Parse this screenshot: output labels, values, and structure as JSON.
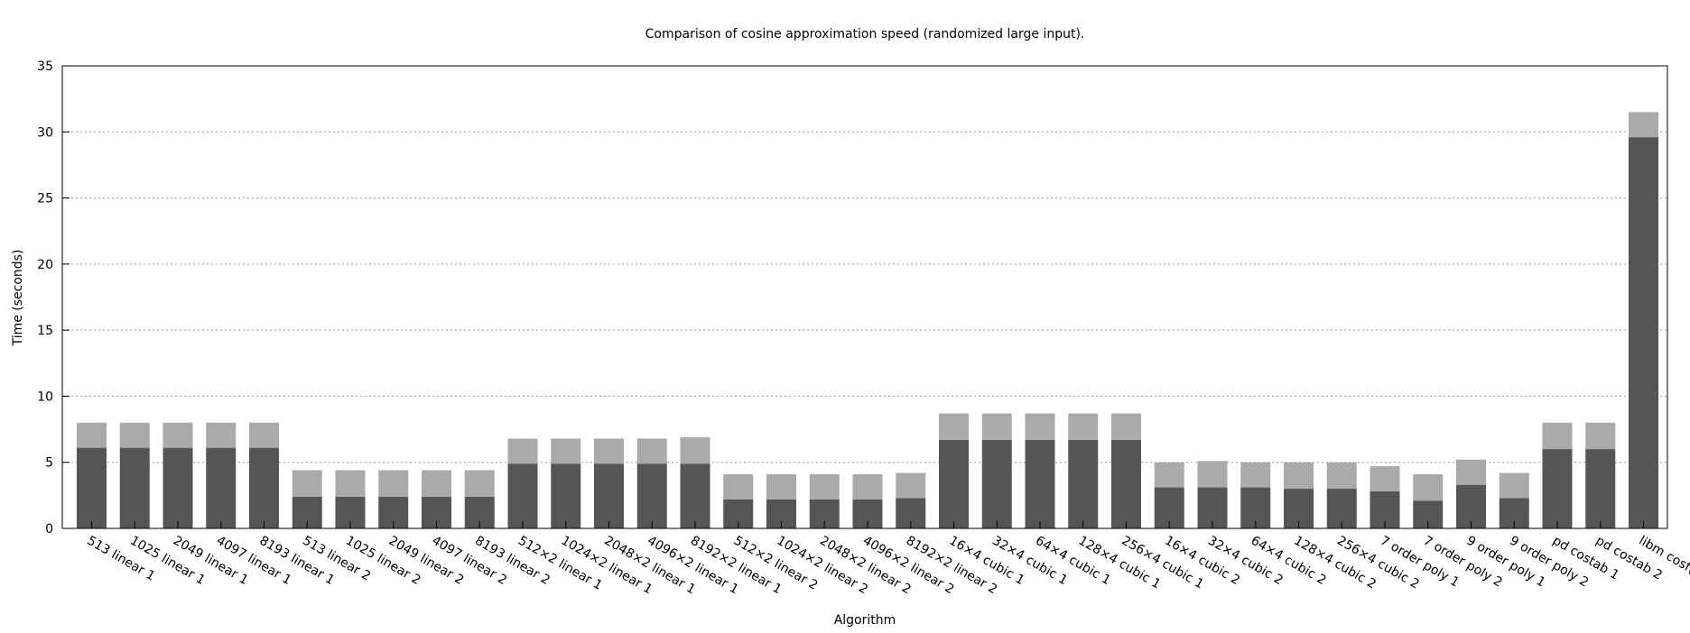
{
  "chart_data": {
    "type": "bar",
    "stacked": true,
    "title": "Comparison of cosine approximation speed (randomized large input).",
    "xlabel": "Algorithm",
    "ylabel": "Time (seconds)",
    "ylim": [
      0,
      35
    ],
    "yticks": [
      0,
      5,
      10,
      15,
      20,
      25,
      30,
      35
    ],
    "grid": true,
    "categories": [
      "513 linear 1",
      "1025 linear 1",
      "2049 linear 1",
      "4097 linear 1",
      "8193 linear 1",
      "513 linear 2",
      "1025 linear 2",
      "2049 linear 2",
      "4097 linear 2",
      "8193 linear 2",
      "512×2 linear 1",
      "1024×2 linear 1",
      "2048×2 linear 1",
      "4096×2 linear 1",
      "8192×2 linear 1",
      "512×2 linear 2",
      "1024×2 linear 2",
      "2048×2 linear 2",
      "4096×2 linear 2",
      "8192×2 linear 2",
      "16×4 cubic 1",
      "32×4 cubic 1",
      "64×4 cubic 1",
      "128×4 cubic 1",
      "256×4 cubic 1",
      "16×4 cubic 2",
      "32×4 cubic 2",
      "64×4 cubic 2",
      "128×4 cubic 2",
      "256×4 cubic 2",
      "7 order poly 1",
      "7 order poly 2",
      "9 order poly 1",
      "9 order poly 2",
      "pd costab 1",
      "pd costab 2",
      "libm cosf()"
    ],
    "series": [
      {
        "color": "#555555",
        "values": [
          6.1,
          6.1,
          6.1,
          6.1,
          6.1,
          2.4,
          2.4,
          2.4,
          2.4,
          2.4,
          4.9,
          4.9,
          4.9,
          4.9,
          4.9,
          2.2,
          2.2,
          2.2,
          2.2,
          2.3,
          6.7,
          6.7,
          6.7,
          6.7,
          6.7,
          3.1,
          3.1,
          3.1,
          3.0,
          3.0,
          2.8,
          2.1,
          3.3,
          2.3,
          6.0,
          6.0,
          29.6
        ]
      },
      {
        "color": "#aaaaaa",
        "values": [
          1.9,
          1.9,
          1.9,
          1.9,
          1.9,
          2.0,
          2.0,
          2.0,
          2.0,
          2.0,
          1.9,
          1.9,
          1.9,
          1.9,
          2.0,
          1.9,
          1.9,
          1.9,
          1.9,
          1.9,
          2.0,
          2.0,
          2.0,
          2.0,
          2.0,
          1.9,
          2.0,
          1.9,
          2.0,
          2.0,
          1.9,
          2.0,
          1.9,
          1.9,
          2.0,
          2.0,
          1.9
        ]
      }
    ]
  }
}
